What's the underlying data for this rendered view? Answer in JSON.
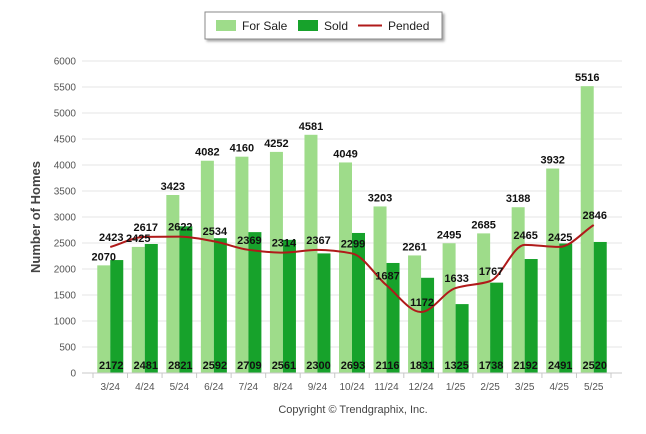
{
  "chart_data": {
    "type": "bar",
    "categories": [
      "3/24",
      "4/24",
      "5/24",
      "6/24",
      "7/24",
      "8/24",
      "9/24",
      "10/24",
      "11/24",
      "12/24",
      "1/25",
      "2/25",
      "3/25",
      "4/25",
      "5/25"
    ],
    "series": [
      {
        "name": "For Sale",
        "type": "bar",
        "values": [
          2070,
          2425,
          3423,
          4082,
          4160,
          4252,
          4581,
          4049,
          3203,
          2261,
          2495,
          2685,
          3188,
          3932,
          5516
        ]
      },
      {
        "name": "Sold",
        "type": "bar",
        "values": [
          2172,
          2481,
          2821,
          2592,
          2709,
          2561,
          2300,
          2693,
          2116,
          1831,
          1325,
          1738,
          2192,
          2491,
          2520
        ]
      },
      {
        "name": "Pended",
        "type": "line",
        "values": [
          2423,
          2617,
          2622,
          2534,
          2369,
          2314,
          2367,
          2299,
          1687,
          1172,
          1633,
          1767,
          2465,
          2425,
          2846
        ]
      }
    ],
    "ylabel": "Number of Homes",
    "ylim": [
      0,
      6000
    ],
    "yticks": [
      0,
      500,
      1000,
      1500,
      2000,
      2500,
      3000,
      3500,
      4000,
      4500,
      5000,
      5500,
      6000
    ],
    "grid": true,
    "legend_position": "top-center",
    "colors": {
      "for_sale": "#9edc8a",
      "sold": "#17a22b",
      "pended": "#b01a1a"
    }
  },
  "footer": {
    "copyright": "Copyright © Trendgraphix, Inc."
  }
}
